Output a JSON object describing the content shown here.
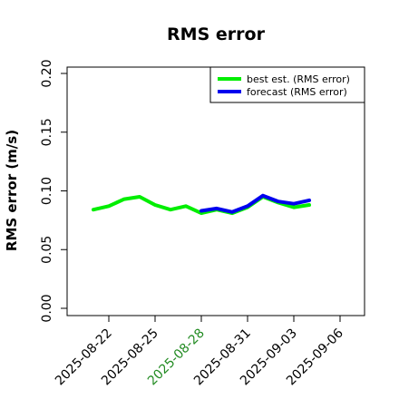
{
  "chart_data": {
    "type": "line",
    "title": "RMS error",
    "xlabel": "",
    "ylabel": "RMS error (m/s)",
    "ylim": [
      0.0,
      0.21
    ],
    "yticks": [
      0.0,
      0.05,
      0.1,
      0.15,
      0.2
    ],
    "ytick_labels": [
      "0.00",
      "0.05",
      "0.10",
      "0.15",
      "0.20"
    ],
    "xticks": [
      "2025-08-22",
      "2025-08-25",
      "2025-08-28",
      "2025-08-31",
      "2025-09-03",
      "2025-09-06"
    ],
    "highlight_xtick": "2025-08-28",
    "highlight_color": "#228B22",
    "xlim": [
      "2025-08-20",
      "2025-09-07"
    ],
    "grid": false,
    "legend_position": "top-right",
    "series": [
      {
        "name": "best est. (RMS error)",
        "color": "#00ee00",
        "points": [
          [
            "2025-08-21",
            0.084
          ],
          [
            "2025-08-22",
            0.087
          ],
          [
            "2025-08-23",
            0.093
          ],
          [
            "2025-08-24",
            0.095
          ],
          [
            "2025-08-25",
            0.088
          ],
          [
            "2025-08-26",
            0.084
          ],
          [
            "2025-08-27",
            0.087
          ],
          [
            "2025-08-28",
            0.081
          ],
          [
            "2025-08-29",
            0.084
          ],
          [
            "2025-08-30",
            0.081
          ],
          [
            "2025-08-31",
            0.086
          ],
          [
            "2025-09-01",
            0.095
          ],
          [
            "2025-09-02",
            0.09
          ],
          [
            "2025-09-03",
            0.086
          ],
          [
            "2025-09-04",
            0.088
          ]
        ]
      },
      {
        "name": "forecast (RMS error)",
        "color": "#0000ee",
        "points": [
          [
            "2025-08-28",
            0.083
          ],
          [
            "2025-08-29",
            0.085
          ],
          [
            "2025-08-30",
            0.082
          ],
          [
            "2025-08-31",
            0.087
          ],
          [
            "2025-09-01",
            0.096
          ],
          [
            "2025-09-02",
            0.091
          ],
          [
            "2025-09-03",
            0.089
          ],
          [
            "2025-09-04",
            0.092
          ]
        ]
      }
    ]
  }
}
